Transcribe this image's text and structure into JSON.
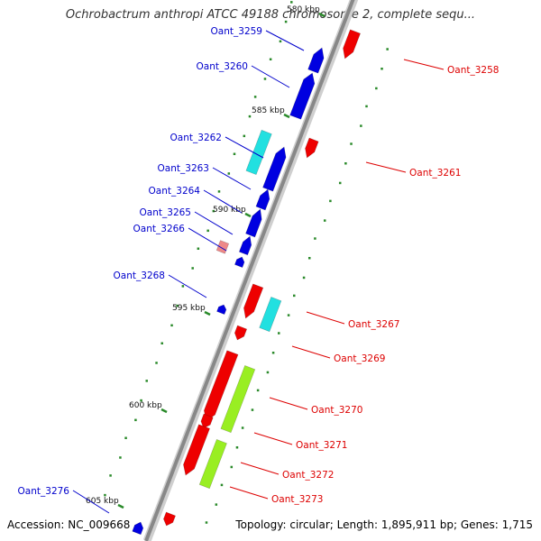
{
  "title": "Ochrobactrum anthropi ATCC 49188 chromosome 2, complete sequ...",
  "footer": {
    "accession": "Accession: NC_009668",
    "summary": "Topology: circular; Length: 1,895,911 bp; Genes: 1,715"
  },
  "colors": {
    "forward_gene": "#0000e0",
    "reverse_gene": "#ee0000",
    "forward_label": "#0000cc",
    "reverse_label": "#dd0000",
    "gc_dot": "#2a8a2a",
    "backbone": "#888888",
    "highlight_cyan": "#22e0e0",
    "highlight_lime": "#99ee22"
  },
  "scale_labels": [
    {
      "text": "580 kbp"
    },
    {
      "text": "585 kbp"
    },
    {
      "text": "590 kbp"
    },
    {
      "text": "595 kbp"
    },
    {
      "text": "600 kbp"
    },
    {
      "text": "605 kbp"
    }
  ],
  "genes": [
    {
      "name": "Oant_3258",
      "strand": "reverse"
    },
    {
      "name": "Oant_3259",
      "strand": "forward"
    },
    {
      "name": "Oant_3260",
      "strand": "forward"
    },
    {
      "name": "Oant_3261",
      "strand": "reverse"
    },
    {
      "name": "Oant_3262",
      "strand": "forward"
    },
    {
      "name": "Oant_3263",
      "strand": "forward"
    },
    {
      "name": "Oant_3264",
      "strand": "forward"
    },
    {
      "name": "Oant_3265",
      "strand": "forward"
    },
    {
      "name": "Oant_3266",
      "strand": "forward"
    },
    {
      "name": "Oant_3267",
      "strand": "reverse"
    },
    {
      "name": "Oant_3268",
      "strand": "forward"
    },
    {
      "name": "Oant_3269",
      "strand": "reverse"
    },
    {
      "name": "Oant_3270",
      "strand": "reverse"
    },
    {
      "name": "Oant_3271",
      "strand": "reverse"
    },
    {
      "name": "Oant_3272",
      "strand": "reverse"
    },
    {
      "name": "Oant_3273",
      "strand": "reverse"
    },
    {
      "name": "Oant_3276",
      "strand": "forward"
    }
  ]
}
